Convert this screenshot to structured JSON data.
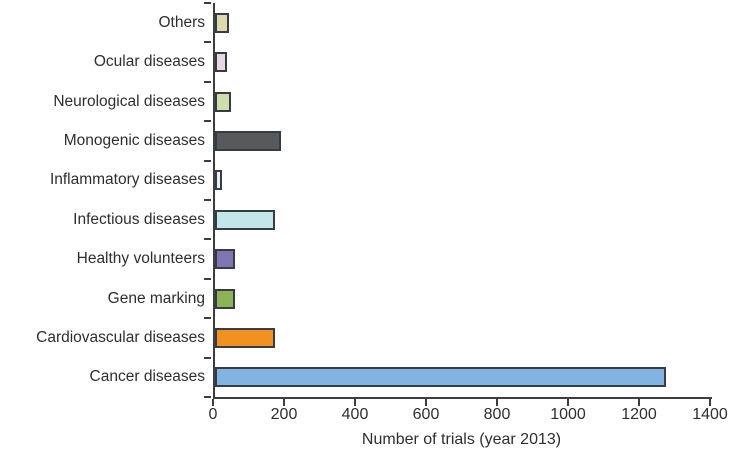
{
  "chart_data": {
    "type": "bar",
    "orientation": "horizontal",
    "title": "",
    "xlabel": "Number of trials (year 2013)",
    "ylabel": "",
    "xlim": [
      0,
      1400
    ],
    "x_ticks": [
      0,
      200,
      400,
      600,
      800,
      1000,
      1200,
      1400
    ],
    "x_tick_labels": [
      "0",
      "200",
      "400",
      "600",
      "800",
      "1000",
      "1200",
      "1400"
    ],
    "grid": false,
    "legend": false,
    "categories_top_to_bottom": [
      "Others",
      "Ocular diseases",
      "Neurological diseases",
      "Monogenic diseases",
      "Inflammatory diseases",
      "Infectious diseases",
      "Healthy volunteers",
      "Gene marking",
      "Cardiovascular diseases",
      "Cancer diseases"
    ],
    "values": [
      40,
      35,
      45,
      185,
      20,
      170,
      55,
      55,
      170,
      1270
    ],
    "bar_colors": [
      "#ddd8ae",
      "#e6d7e1",
      "#cfddad",
      "#58595b",
      "#eaf0f3",
      "#c2e7ea",
      "#8076b3",
      "#8db356",
      "#f19122",
      "#82b4e1"
    ],
    "bar_border_color": "#353c44",
    "axis_color": "#3d3d3d",
    "text_color": "#2e2e2e",
    "background_color": "#ffffff"
  }
}
